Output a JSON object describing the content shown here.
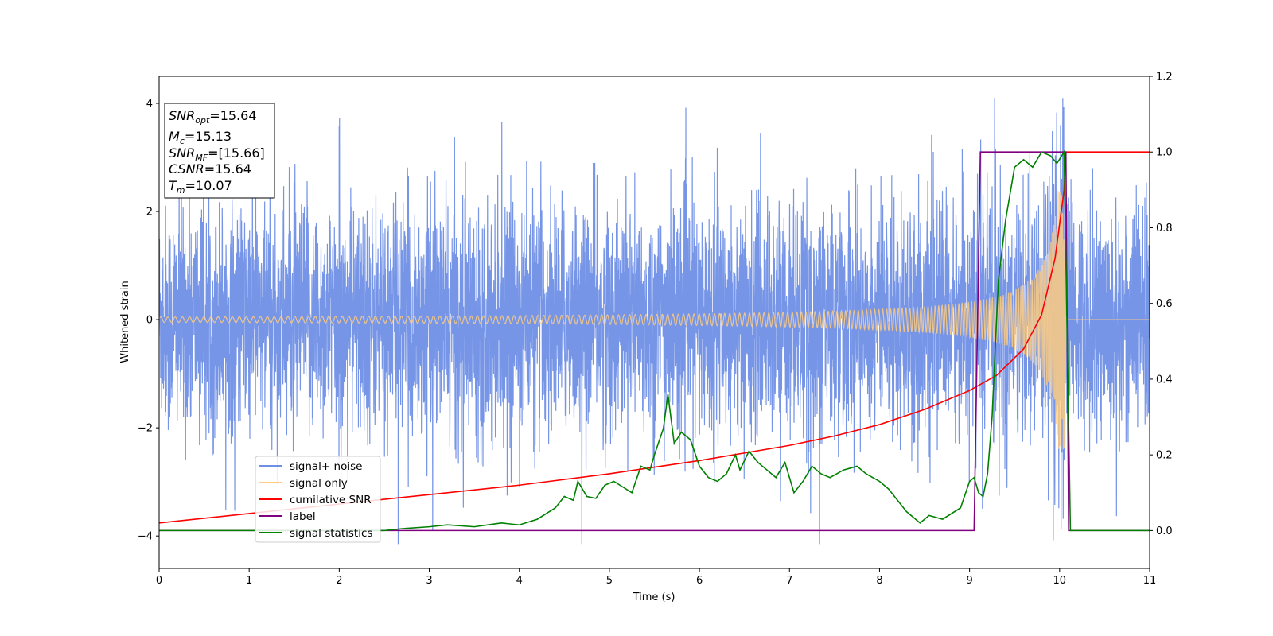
{
  "chart_data": {
    "type": "line",
    "xlabel": "Time (s)",
    "ylabel": "Whitened strain",
    "xlim": [
      0,
      11
    ],
    "ylim_left": [
      -4.6,
      4.5
    ],
    "ylim_right": [
      -0.1,
      1.2
    ],
    "grid": false,
    "x_ticks": [
      "0",
      "1",
      "2",
      "3",
      "4",
      "5",
      "6",
      "7",
      "8",
      "9",
      "10",
      "11"
    ],
    "y_ticks_left": [
      "−4",
      "−2",
      "0",
      "2",
      "4"
    ],
    "y_ticks_right": [
      "0.0",
      "0.2",
      "0.4",
      "0.6",
      "0.8",
      "1.0",
      "1.2"
    ],
    "annotation": {
      "lines": [
        {
          "var": "SNR",
          "sub": "opt",
          "value": "=15.64"
        },
        {
          "var": "M",
          "sub": "c",
          "value": "=15.13"
        },
        {
          "var": "SNR",
          "sub": "MF",
          "value": "=[15.66]"
        },
        {
          "var": "CSNR",
          "sub": "",
          "value": "=15.64"
        },
        {
          "var": "T",
          "sub": "m",
          "value": "=10.07"
        }
      ]
    },
    "legend": {
      "placement": "lower-left",
      "entries": [
        {
          "label": "signal+ noise",
          "color": "#6f8fe6"
        },
        {
          "label": "signal only",
          "color": "#ffcc80"
        },
        {
          "label": "cumilative SNR",
          "color": "#ff0000"
        },
        {
          "label": "label",
          "color": "#800080"
        },
        {
          "label": "signal statistics",
          "color": "#008000"
        }
      ]
    },
    "series": [
      {
        "name": "signal+ noise",
        "axis": "left",
        "color": "#6f8fe6",
        "description_values": {
          "noise_amplitude_typical": 1.3,
          "peak_max": 4.1,
          "peak_min": -4.15,
          "peak_at_max_x": 2.92
        }
      },
      {
        "name": "signal only",
        "axis": "left",
        "color": "#ffcc80",
        "chirp": {
          "start": 0,
          "end": 10.07,
          "amp_start": 0.05,
          "amp_end": 2.4
        }
      },
      {
        "name": "cumilative SNR",
        "axis": "right",
        "color": "#ff0000",
        "points": [
          [
            0,
            0.02
          ],
          [
            1,
            0.045
          ],
          [
            2,
            0.07
          ],
          [
            3,
            0.095
          ],
          [
            4,
            0.12
          ],
          [
            5,
            0.15
          ],
          [
            6,
            0.185
          ],
          [
            7,
            0.225
          ],
          [
            7.5,
            0.25
          ],
          [
            8,
            0.28
          ],
          [
            8.5,
            0.32
          ],
          [
            9,
            0.37
          ],
          [
            9.3,
            0.41
          ],
          [
            9.6,
            0.48
          ],
          [
            9.8,
            0.57
          ],
          [
            9.95,
            0.72
          ],
          [
            10.05,
            0.9
          ],
          [
            10.07,
            1.0
          ],
          [
            11,
            1.0
          ]
        ]
      },
      {
        "name": "label",
        "axis": "right",
        "color": "#800080",
        "points": [
          [
            0,
            0
          ],
          [
            9.05,
            0
          ],
          [
            9.12,
            1.0
          ],
          [
            10.07,
            1.0
          ],
          [
            10.1,
            0
          ],
          [
            11,
            0
          ]
        ]
      },
      {
        "name": "signal statistics",
        "axis": "right",
        "color": "#008000",
        "points": [
          [
            0,
            0
          ],
          [
            2,
            0
          ],
          [
            2.5,
            0
          ],
          [
            2.7,
            0.005
          ],
          [
            3.0,
            0.01
          ],
          [
            3.2,
            0.015
          ],
          [
            3.5,
            0.01
          ],
          [
            3.8,
            0.02
          ],
          [
            4.0,
            0.015
          ],
          [
            4.2,
            0.03
          ],
          [
            4.4,
            0.06
          ],
          [
            4.5,
            0.09
          ],
          [
            4.6,
            0.08
          ],
          [
            4.65,
            0.13
          ],
          [
            4.75,
            0.09
          ],
          [
            4.85,
            0.085
          ],
          [
            4.95,
            0.12
          ],
          [
            5.05,
            0.13
          ],
          [
            5.15,
            0.115
          ],
          [
            5.25,
            0.1
          ],
          [
            5.35,
            0.17
          ],
          [
            5.45,
            0.16
          ],
          [
            5.5,
            0.2
          ],
          [
            5.6,
            0.27
          ],
          [
            5.65,
            0.36
          ],
          [
            5.72,
            0.23
          ],
          [
            5.8,
            0.26
          ],
          [
            5.9,
            0.24
          ],
          [
            6.0,
            0.17
          ],
          [
            6.1,
            0.14
          ],
          [
            6.2,
            0.13
          ],
          [
            6.3,
            0.15
          ],
          [
            6.4,
            0.2
          ],
          [
            6.45,
            0.16
          ],
          [
            6.55,
            0.21
          ],
          [
            6.65,
            0.18
          ],
          [
            6.75,
            0.16
          ],
          [
            6.85,
            0.14
          ],
          [
            6.95,
            0.18
          ],
          [
            7.05,
            0.1
          ],
          [
            7.15,
            0.13
          ],
          [
            7.25,
            0.17
          ],
          [
            7.35,
            0.15
          ],
          [
            7.45,
            0.14
          ],
          [
            7.6,
            0.16
          ],
          [
            7.75,
            0.17
          ],
          [
            7.85,
            0.15
          ],
          [
            8.0,
            0.13
          ],
          [
            8.1,
            0.11
          ],
          [
            8.3,
            0.05
          ],
          [
            8.45,
            0.02
          ],
          [
            8.55,
            0.04
          ],
          [
            8.7,
            0.03
          ],
          [
            8.9,
            0.06
          ],
          [
            9.0,
            0.13
          ],
          [
            9.05,
            0.14
          ],
          [
            9.1,
            0.1
          ],
          [
            9.15,
            0.09
          ],
          [
            9.2,
            0.15
          ],
          [
            9.25,
            0.3
          ],
          [
            9.32,
            0.66
          ],
          [
            9.4,
            0.82
          ],
          [
            9.5,
            0.96
          ],
          [
            9.6,
            0.98
          ],
          [
            9.7,
            0.96
          ],
          [
            9.8,
            1.0
          ],
          [
            9.9,
            0.99
          ],
          [
            9.97,
            0.97
          ],
          [
            10.05,
            1.0
          ],
          [
            10.12,
            0
          ],
          [
            11,
            0
          ]
        ]
      }
    ]
  }
}
